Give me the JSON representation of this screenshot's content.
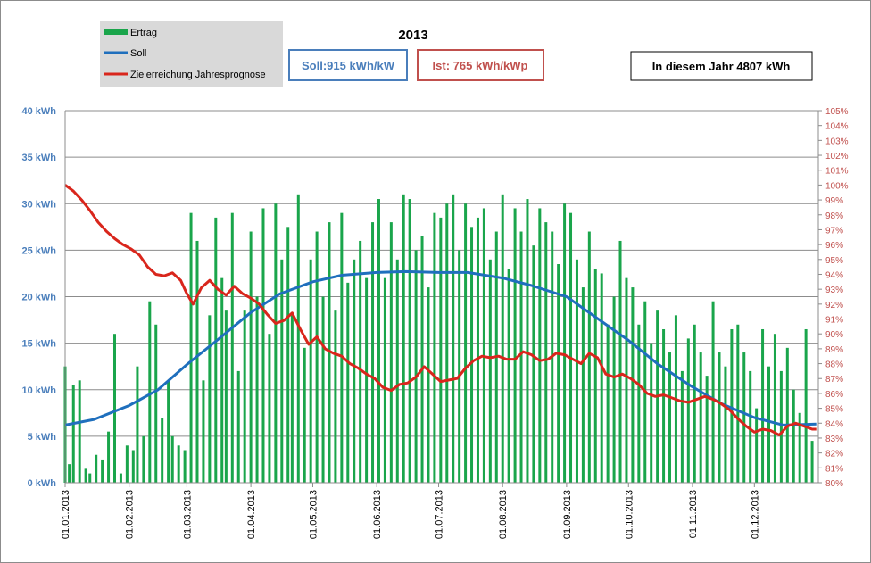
{
  "chart_data": {
    "type": "bar",
    "title": "2013",
    "legend": {
      "placement": "top-left",
      "items": [
        {
          "label": "Ertrag",
          "color": "#1aa54b",
          "kind": "bar"
        },
        {
          "label": "Soll",
          "color": "#1f6fbd",
          "kind": "line"
        },
        {
          "label": "Zielerreichung Jahresprognose",
          "color": "#d9261c",
          "kind": "line"
        }
      ]
    },
    "boxes": {
      "soll": "Soll:915 kWh/kW",
      "ist": "Ist: 765 kWh/kWp",
      "year": "In diesem Jahr 4807 kWh"
    },
    "colors": {
      "bars": "#1aa54b",
      "soll": "#1f6fbd",
      "forecast": "#d9261c",
      "left_axis_text": "#4a7ebb",
      "right_axis_text": "#c0504d",
      "grid": "#8c8c8c",
      "legend_bg": "#d9d9d9"
    },
    "y_left": {
      "min": 0,
      "max": 40,
      "unit": "kWh",
      "ticks": [
        "0 kWh",
        "5 kWh",
        "10 kWh",
        "15 kWh",
        "20 kWh",
        "25 kWh",
        "30 kWh",
        "35 kWh",
        "40 kWh"
      ]
    },
    "y_right": {
      "min": 80,
      "max": 105,
      "unit": "%",
      "ticks": [
        "80%",
        "81%",
        "82%",
        "83%",
        "84%",
        "85%",
        "86%",
        "87%",
        "88%",
        "89%",
        "90%",
        "91%",
        "92%",
        "93%",
        "94%",
        "95%",
        "96%",
        "97%",
        "98%",
        "99%",
        "100%",
        "101%",
        "102%",
        "103%",
        "104%",
        "105%"
      ]
    },
    "x_axis": {
      "start": "2013-01-01",
      "end": "2013-12-31",
      "tick_labels": [
        "01.01.2013",
        "01.02.2013",
        "01.03.2013",
        "01.04.2013",
        "01.05.2013",
        "01.06.2013",
        "01.07.2013",
        "01.08.2013",
        "01.09.2013",
        "01.10.2013",
        "01.11.2013",
        "01.12.2013"
      ],
      "tick_dates": [
        "2013-01-01",
        "2013-02-01",
        "2013-03-01",
        "2013-04-01",
        "2013-05-01",
        "2013-06-01",
        "2013-07-01",
        "2013-08-01",
        "2013-09-01",
        "2013-10-01",
        "2013-11-01",
        "2013-12-01"
      ]
    },
    "series": [
      {
        "name": "Ertrag",
        "unit": "kWh",
        "x": [
          "2013-01-01",
          "2013-01-03",
          "2013-01-05",
          "2013-01-08",
          "2013-01-11",
          "2013-01-13",
          "2013-01-16",
          "2013-01-19",
          "2013-01-22",
          "2013-01-25",
          "2013-01-28",
          "2013-01-31",
          "2013-02-03",
          "2013-02-05",
          "2013-02-08",
          "2013-02-11",
          "2013-02-14",
          "2013-02-17",
          "2013-02-20",
          "2013-02-22",
          "2013-02-25",
          "2013-02-28",
          "2013-03-03",
          "2013-03-06",
          "2013-03-09",
          "2013-03-12",
          "2013-03-15",
          "2013-03-18",
          "2013-03-20",
          "2013-03-23",
          "2013-03-26",
          "2013-03-29",
          "2013-04-01",
          "2013-04-04",
          "2013-04-07",
          "2013-04-10",
          "2013-04-13",
          "2013-04-16",
          "2013-04-19",
          "2013-04-21",
          "2013-04-24",
          "2013-04-27",
          "2013-04-30",
          "2013-05-03",
          "2013-05-06",
          "2013-05-09",
          "2013-05-12",
          "2013-05-15",
          "2013-05-18",
          "2013-05-21",
          "2013-05-24",
          "2013-05-27",
          "2013-05-30",
          "2013-06-02",
          "2013-06-05",
          "2013-06-08",
          "2013-06-11",
          "2013-06-14",
          "2013-06-17",
          "2013-06-20",
          "2013-06-23",
          "2013-06-26",
          "2013-06-29",
          "2013-07-02",
          "2013-07-05",
          "2013-07-08",
          "2013-07-11",
          "2013-07-14",
          "2013-07-17",
          "2013-07-20",
          "2013-07-23",
          "2013-07-26",
          "2013-07-29",
          "2013-08-01",
          "2013-08-04",
          "2013-08-07",
          "2013-08-10",
          "2013-08-13",
          "2013-08-16",
          "2013-08-19",
          "2013-08-22",
          "2013-08-25",
          "2013-08-28",
          "2013-08-31",
          "2013-09-03",
          "2013-09-06",
          "2013-09-09",
          "2013-09-12",
          "2013-09-15",
          "2013-09-18",
          "2013-09-21",
          "2013-09-24",
          "2013-09-27",
          "2013-09-30",
          "2013-10-03",
          "2013-10-06",
          "2013-10-09",
          "2013-10-12",
          "2013-10-15",
          "2013-10-18",
          "2013-10-21",
          "2013-10-24",
          "2013-10-27",
          "2013-10-30",
          "2013-11-02",
          "2013-11-05",
          "2013-11-08",
          "2013-11-11",
          "2013-11-14",
          "2013-11-17",
          "2013-11-20",
          "2013-11-23",
          "2013-11-26",
          "2013-11-29",
          "2013-12-02",
          "2013-12-05",
          "2013-12-08",
          "2013-12-11",
          "2013-12-14",
          "2013-12-17",
          "2013-12-20",
          "2013-12-23",
          "2013-12-26",
          "2013-12-29"
        ],
        "values": [
          12.5,
          2.0,
          10.5,
          11.0,
          1.5,
          1.0,
          3.0,
          2.5,
          5.5,
          16.0,
          1.0,
          4.0,
          3.5,
          12.5,
          5.0,
          19.5,
          17.0,
          7.0,
          11.0,
          5.0,
          4.0,
          3.5,
          29.0,
          26.0,
          11.0,
          18.0,
          28.5,
          22.0,
          18.5,
          29.0,
          12.0,
          18.5,
          27.0,
          20.0,
          29.5,
          16.0,
          30.0,
          24.0,
          27.5,
          18.0,
          31.0,
          14.5,
          24.0,
          27.0,
          20.0,
          28.0,
          18.5,
          29.0,
          21.5,
          24.0,
          26.0,
          22.0,
          28.0,
          30.5,
          22.0,
          28.0,
          24.0,
          31.0,
          30.5,
          25.0,
          26.5,
          21.0,
          29.0,
          28.5,
          30.0,
          31.0,
          25.0,
          30.0,
          27.5,
          28.5,
          29.5,
          24.0,
          27.0,
          31.0,
          23.0,
          29.5,
          27.0,
          30.5,
          25.5,
          29.5,
          28.0,
          27.0,
          23.5,
          30.0,
          29.0,
          24.0,
          21.0,
          27.0,
          23.0,
          22.5,
          17.0,
          20.0,
          26.0,
          22.0,
          21.0,
          17.0,
          19.5,
          15.0,
          18.5,
          16.5,
          14.0,
          18.0,
          12.0,
          15.5,
          17.0,
          14.0,
          11.5,
          19.5,
          14.0,
          12.5,
          16.5,
          17.0,
          14.0,
          12.0,
          8.0,
          16.5,
          12.5,
          16.0,
          12.0,
          14.5,
          10.0,
          7.5,
          16.5,
          4.5
        ]
      },
      {
        "name": "Soll",
        "unit": "kWh",
        "x": [
          "2013-01-01",
          "2013-01-15",
          "2013-02-01",
          "2013-02-15",
          "2013-03-01",
          "2013-03-15",
          "2013-04-01",
          "2013-04-15",
          "2013-05-01",
          "2013-05-15",
          "2013-06-01",
          "2013-06-15",
          "2013-07-01",
          "2013-07-15",
          "2013-08-01",
          "2013-08-15",
          "2013-09-01",
          "2013-09-15",
          "2013-10-01",
          "2013-10-15",
          "2013-11-01",
          "2013-11-15",
          "2013-12-01",
          "2013-12-15",
          "2013-12-31"
        ],
        "values": [
          6.2,
          6.8,
          8.3,
          10.0,
          12.7,
          15.2,
          18.3,
          20.3,
          21.6,
          22.3,
          22.6,
          22.7,
          22.6,
          22.6,
          22.0,
          21.2,
          20.0,
          17.8,
          15.3,
          12.8,
          10.3,
          8.5,
          7.0,
          6.2,
          6.3
        ]
      },
      {
        "name": "Zielerreichung Jahresprognose",
        "unit": "%",
        "axis": "right",
        "x": [
          "2013-01-01",
          "2013-01-05",
          "2013-01-09",
          "2013-01-13",
          "2013-01-17",
          "2013-01-21",
          "2013-01-25",
          "2013-01-29",
          "2013-02-02",
          "2013-02-06",
          "2013-02-10",
          "2013-02-14",
          "2013-02-18",
          "2013-02-22",
          "2013-02-26",
          "2013-03-01",
          "2013-03-04",
          "2013-03-08",
          "2013-03-12",
          "2013-03-16",
          "2013-03-20",
          "2013-03-24",
          "2013-03-28",
          "2013-04-01",
          "2013-04-05",
          "2013-04-09",
          "2013-04-13",
          "2013-04-17",
          "2013-04-21",
          "2013-04-25",
          "2013-04-29",
          "2013-05-03",
          "2013-05-07",
          "2013-05-11",
          "2013-05-15",
          "2013-05-19",
          "2013-05-23",
          "2013-05-27",
          "2013-05-31",
          "2013-06-04",
          "2013-06-08",
          "2013-06-12",
          "2013-06-16",
          "2013-06-20",
          "2013-06-24",
          "2013-06-28",
          "2013-07-02",
          "2013-07-06",
          "2013-07-10",
          "2013-07-14",
          "2013-07-18",
          "2013-07-22",
          "2013-07-26",
          "2013-07-30",
          "2013-08-03",
          "2013-08-07",
          "2013-08-11",
          "2013-08-15",
          "2013-08-19",
          "2013-08-23",
          "2013-08-27",
          "2013-08-31",
          "2013-09-04",
          "2013-09-08",
          "2013-09-12",
          "2013-09-16",
          "2013-09-20",
          "2013-09-24",
          "2013-09-28",
          "2013-10-02",
          "2013-10-06",
          "2013-10-10",
          "2013-10-14",
          "2013-10-18",
          "2013-10-22",
          "2013-10-26",
          "2013-10-30",
          "2013-11-03",
          "2013-11-07",
          "2013-11-11",
          "2013-11-15",
          "2013-11-19",
          "2013-11-23",
          "2013-11-27",
          "2013-12-01",
          "2013-12-05",
          "2013-12-09",
          "2013-12-13",
          "2013-12-17",
          "2013-12-21",
          "2013-12-25",
          "2013-12-29",
          "2013-12-31"
        ],
        "values": [
          100.0,
          99.6,
          99.0,
          98.3,
          97.5,
          96.9,
          96.4,
          96.0,
          95.7,
          95.3,
          94.5,
          94.0,
          93.9,
          94.1,
          93.6,
          92.7,
          92.0,
          93.1,
          93.6,
          93.0,
          92.6,
          93.2,
          92.7,
          92.4,
          92.0,
          91.3,
          90.7,
          90.9,
          91.4,
          90.3,
          89.3,
          89.8,
          89.0,
          88.7,
          88.5,
          88.0,
          87.7,
          87.3,
          87.0,
          86.4,
          86.2,
          86.6,
          86.7,
          87.1,
          87.8,
          87.3,
          86.8,
          86.9,
          87.0,
          87.7,
          88.2,
          88.5,
          88.4,
          88.5,
          88.3,
          88.3,
          88.8,
          88.6,
          88.2,
          88.3,
          88.7,
          88.6,
          88.3,
          88.0,
          88.7,
          88.4,
          87.3,
          87.1,
          87.3,
          87.0,
          86.6,
          86.0,
          85.8,
          85.9,
          85.7,
          85.5,
          85.4,
          85.6,
          85.8,
          85.6,
          85.3,
          84.9,
          84.3,
          83.8,
          83.4,
          83.6,
          83.5,
          83.2,
          83.8,
          84.0,
          83.8,
          83.6,
          83.6
        ]
      }
    ]
  }
}
